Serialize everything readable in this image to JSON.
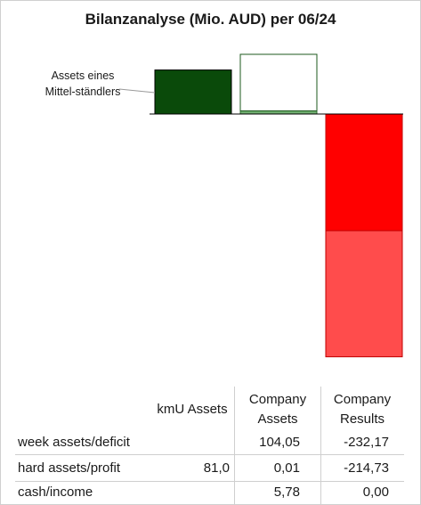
{
  "chart_data": {
    "type": "bar",
    "title": "Bilanzanalyse  (Mio. AUD) per 06/24",
    "callout": "Assets eines Mittel-ständlers",
    "columns": [
      "kmU Assets",
      "Company Assets",
      "Company Results"
    ],
    "rows": [
      {
        "label": "week assets/deficit",
        "values": [
          "",
          "104,05",
          "-232,17"
        ]
      },
      {
        "label": "hard assets/profit",
        "values": [
          "81,0",
          "0,01",
          "-214,73"
        ]
      },
      {
        "label": "cash/income",
        "values": [
          "",
          "5,78",
          "0,00"
        ]
      }
    ],
    "stacks": [
      {
        "column": "kmU Assets",
        "segments": [
          {
            "row": "hard assets/profit",
            "value": 81.0,
            "color": "#0a4a0a",
            "stroke": "#000000"
          }
        ]
      },
      {
        "column": "Company Assets",
        "segments": [
          {
            "row": "cash/income",
            "value": 5.78,
            "color": "#6fae6f",
            "stroke": "#2e6b2e"
          },
          {
            "row": "hard assets/profit",
            "value": 0.01,
            "color": "#6fae6f",
            "stroke": "#2e6b2e"
          },
          {
            "row": "week assets/deficit",
            "value": 104.05,
            "color": "#ffffff",
            "stroke": "#1e5a1e"
          }
        ]
      },
      {
        "column": "Company Results",
        "segments": [
          {
            "row": "hard assets/profit",
            "value": -214.73,
            "color": "#ff0000",
            "stroke": "#c00000"
          },
          {
            "row": "week assets/deficit",
            "value": -232.17,
            "color": "#ff4c4c",
            "stroke": "#c00000"
          },
          {
            "row": "cash/income",
            "value": 0.0,
            "color": "#ff0000",
            "stroke": "#c00000"
          }
        ]
      }
    ],
    "ylim": [
      -446.9,
      109.83
    ]
  }
}
